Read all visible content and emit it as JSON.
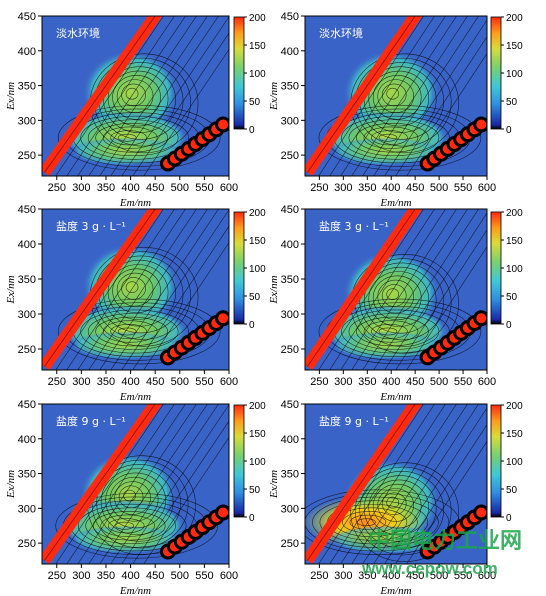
{
  "chart_data": [
    {
      "type": "heatmap",
      "title": "淡水环境",
      "xlabel": "Em/nm",
      "ylabel": "Ex/nm",
      "xlim": [
        220,
        600
      ],
      "ylim": [
        220,
        450
      ],
      "xticks": [
        250,
        300,
        350,
        400,
        450,
        500,
        550,
        600
      ],
      "yticks": [
        250,
        300,
        350,
        400,
        450
      ],
      "colorbar": {
        "min": 0,
        "max": 200,
        "ticks": [
          0,
          50,
          100,
          150,
          200
        ]
      },
      "peaks": [
        {
          "em": 400,
          "ex": 340,
          "intensity": 95
        },
        {
          "em": 390,
          "ex": 275,
          "intensity": 110
        }
      ]
    },
    {
      "type": "heatmap",
      "title": "淡水环境",
      "xlabel": "Em/nm",
      "ylabel": "Ex/nm",
      "xlim": [
        220,
        600
      ],
      "ylim": [
        220,
        450
      ],
      "xticks": [
        250,
        300,
        350,
        400,
        450,
        500,
        550,
        600
      ],
      "yticks": [
        250,
        300,
        350,
        400,
        450
      ],
      "colorbar": {
        "min": 0,
        "max": 200,
        "ticks": [
          0,
          50,
          100,
          150,
          200
        ]
      },
      "peaks": [
        {
          "em": 400,
          "ex": 340,
          "intensity": 95
        },
        {
          "em": 390,
          "ex": 275,
          "intensity": 110
        }
      ]
    },
    {
      "type": "heatmap",
      "title": "盐度 3 g · L⁻¹",
      "xlabel": "Em/nm",
      "ylabel": "Ex/nm",
      "xlim": [
        220,
        600
      ],
      "ylim": [
        220,
        450
      ],
      "xticks": [
        250,
        300,
        350,
        400,
        450,
        500,
        550,
        600
      ],
      "yticks": [
        250,
        300,
        350,
        400,
        450
      ],
      "colorbar": {
        "min": 0,
        "max": 200,
        "ticks": [
          0,
          50,
          100,
          150,
          200
        ]
      },
      "peaks": [
        {
          "em": 400,
          "ex": 340,
          "intensity": 95
        },
        {
          "em": 390,
          "ex": 275,
          "intensity": 110
        }
      ]
    },
    {
      "type": "heatmap",
      "title": "盐度 3 g · L⁻¹",
      "xlabel": "Em/nm",
      "ylabel": "Ex/nm",
      "xlim": [
        220,
        600
      ],
      "ylim": [
        220,
        450
      ],
      "xticks": [
        250,
        300,
        350,
        400,
        450,
        500,
        550,
        600
      ],
      "yticks": [
        250,
        300,
        350,
        400,
        450
      ],
      "colorbar": {
        "min": 0,
        "max": 200,
        "ticks": [
          0,
          50,
          100,
          150,
          200
        ]
      },
      "peaks": [
        {
          "em": 400,
          "ex": 330,
          "intensity": 100
        },
        {
          "em": 390,
          "ex": 275,
          "intensity": 100
        }
      ]
    },
    {
      "type": "heatmap",
      "title": "盐度 9 g · L⁻¹",
      "xlabel": "Em/nm",
      "ylabel": "Ex/nm",
      "xlim": [
        220,
        600
      ],
      "ylim": [
        220,
        450
      ],
      "xticks": [
        250,
        300,
        350,
        400,
        450,
        500,
        550,
        600
      ],
      "yticks": [
        250,
        300,
        350,
        400,
        450
      ],
      "colorbar": {
        "min": 0,
        "max": 200,
        "ticks": [
          0,
          50,
          100,
          150,
          200
        ]
      },
      "peaks": [
        {
          "em": 395,
          "ex": 320,
          "intensity": 95
        },
        {
          "em": 385,
          "ex": 275,
          "intensity": 100
        }
      ]
    },
    {
      "type": "heatmap",
      "title": "盐度 9 g · L⁻¹",
      "xlabel": "Em/nm",
      "ylabel": "Ex/nm",
      "xlim": [
        220,
        600
      ],
      "ylim": [
        220,
        450
      ],
      "xticks": [
        250,
        300,
        350,
        400,
        450,
        500,
        550,
        600
      ],
      "yticks": [
        250,
        300,
        350,
        400,
        450
      ],
      "colorbar": {
        "min": 0,
        "max": 200,
        "ticks": [
          0,
          50,
          100,
          150,
          200
        ]
      },
      "peaks": [
        {
          "em": 400,
          "ex": 310,
          "intensity": 85
        },
        {
          "em": 345,
          "ex": 280,
          "intensity": 170
        }
      ]
    }
  ],
  "watermark": {
    "line1": "中国电力工业网",
    "line2": "www.cepow.com"
  }
}
